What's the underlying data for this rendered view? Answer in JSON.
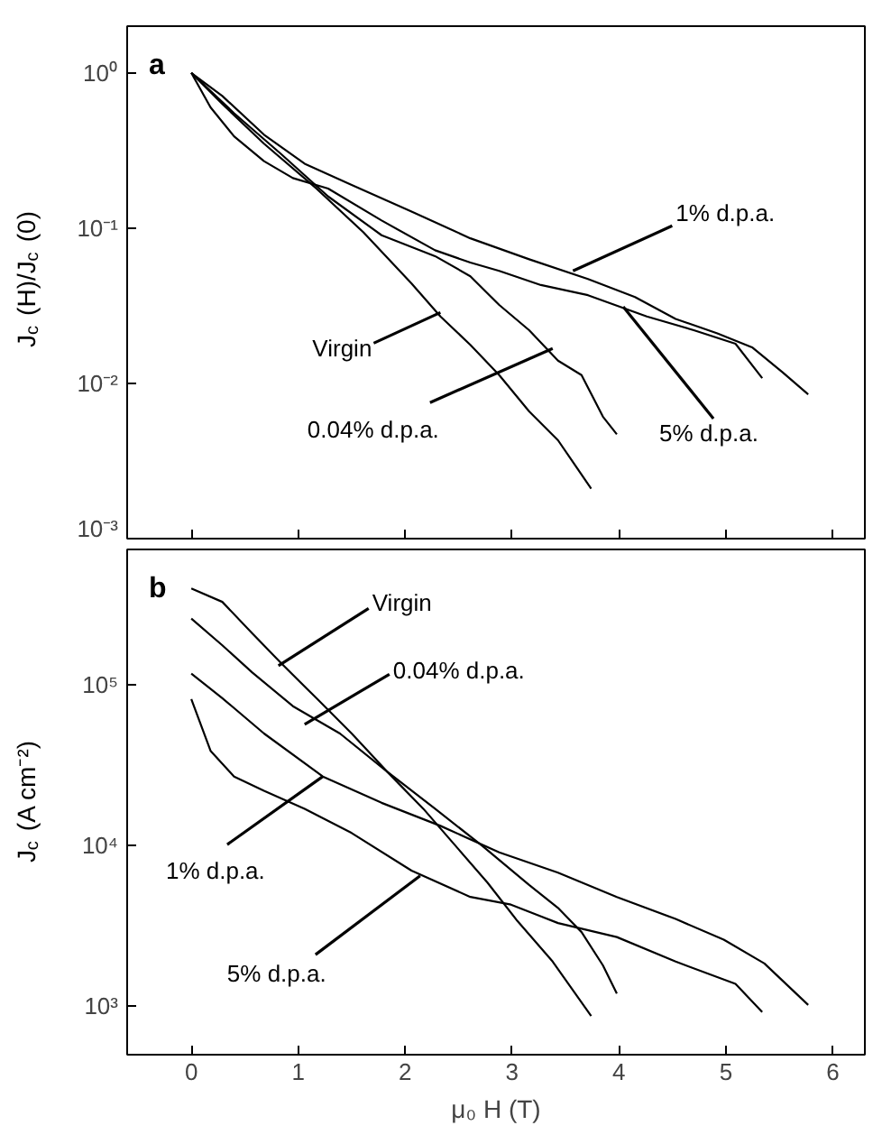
{
  "chart_data": [
    {
      "type": "line",
      "ylabel": "J$_{c}$ (H)/J$_{c}$ (0)",
      "log": true,
      "grid": false,
      "tick_labels": "y",
      "xlim": [
        -0.6,
        6.3
      ],
      "xticks": [
        0,
        1,
        2,
        3,
        4,
        5,
        6
      ],
      "ylim": [
        0.001,
        2
      ],
      "yticks": [
        {
          "value": 0.001,
          "label": "10⁻³"
        },
        {
          "value": 0.01,
          "label": "10⁻²"
        },
        {
          "value": 0.1,
          "label": "10⁻¹"
        },
        {
          "value": 1,
          "label": "10⁰"
        }
      ],
      "series": [
        {
          "color": "#000000",
          "x": [
            0,
            0.29,
            0.68,
            1.17,
            1.61,
            2.06,
            2.33,
            2.61,
            2.88,
            3.16,
            3.43,
            3.74
          ],
          "values": [
            1,
            0.63,
            0.35,
            0.18,
            0.094,
            0.044,
            0.027,
            0.0177,
            0.0113,
            0.0066,
            0.0043,
            0.0021
          ]
        },
        {
          "color": "#000000",
          "x": [
            0,
            0.4,
            0.84,
            1.28,
            1.78,
            2.28,
            2.61,
            2.88,
            3.16,
            3.43,
            3.65,
            3.85,
            3.98
          ],
          "values": [
            1,
            0.55,
            0.3,
            0.16,
            0.09,
            0.066,
            0.049,
            0.032,
            0.022,
            0.014,
            0.0113,
            0.0061,
            0.0047
          ]
        },
        {
          "color": "#000000",
          "x": [
            0,
            0.29,
            0.68,
            1.06,
            1.5,
            2.06,
            2.61,
            3.16,
            3.71,
            4.15,
            4.53,
            4.92,
            5.25,
            5.53,
            5.77
          ],
          "values": [
            1,
            0.71,
            0.4,
            0.26,
            0.19,
            0.128,
            0.086,
            0.063,
            0.047,
            0.036,
            0.026,
            0.021,
            0.017,
            0.0118,
            0.0085
          ]
        },
        {
          "color": "#000000",
          "x": [
            0,
            0.18,
            0.4,
            0.68,
            0.95,
            1.28,
            1.78,
            2.28,
            2.61,
            2.88,
            3.27,
            3.71,
            4.26,
            4.7,
            5.09,
            5.34
          ],
          "values": [
            1,
            0.6,
            0.39,
            0.27,
            0.21,
            0.18,
            0.112,
            0.072,
            0.06,
            0.053,
            0.043,
            0.037,
            0.027,
            0.022,
            0.018,
            0.0108
          ]
        }
      ],
      "annotations": [
        "a",
        {
          "text": "1% d.p.a.",
          "x": 3.57,
          "y": 0.053
        },
        {
          "text": "Virgin",
          "x": 2.33,
          "y": 0.0286
        },
        {
          "text": "0.04% d.p.a.",
          "x": 3.38,
          "y": 0.0168
        },
        {
          "text": "5% d.p.a.",
          "x": 4.04,
          "y": 0.0312
        }
      ]
    },
    {
      "type": "line",
      "xlabel": "μ₀ H (T)",
      "ylabel": "J$_{c}$ (A cm⁻²)",
      "log": true,
      "grid": false,
      "xlim": [
        -0.6,
        6.3
      ],
      "xticks": [
        0,
        1,
        2,
        3,
        4,
        5,
        6
      ],
      "ylim": [
        500,
        700000
      ],
      "yticks": [
        {
          "value": 1000,
          "label": "10³"
        },
        {
          "value": 10000,
          "label": "10⁴"
        },
        {
          "value": 100000,
          "label": "10⁵"
        }
      ],
      "series": [
        {
          "color": "#000000",
          "x": [
            0,
            0.29,
            0.57,
            0.84,
            1.17,
            1.5,
            1.83,
            2.17,
            2.5,
            2.77,
            3.05,
            3.38,
            3.74
          ],
          "values": [
            400000,
            330000,
            210000,
            137000,
            83000,
            50000,
            29000,
            17000,
            9500,
            5900,
            3400,
            1900,
            870
          ]
        },
        {
          "color": "#000000",
          "x": [
            0,
            0.29,
            0.57,
            0.95,
            1.39,
            1.83,
            2.28,
            2.72,
            3.16,
            3.43,
            3.65,
            3.85,
            3.98
          ],
          "values": [
            260000,
            177000,
            120000,
            74000,
            50000,
            29000,
            17000,
            10000,
            5700,
            4100,
            2900,
            1800,
            1200
          ]
        },
        {
          "color": "#000000",
          "x": [
            0,
            0.29,
            0.68,
            1.23,
            1.78,
            2.33,
            2.88,
            3.43,
            3.98,
            4.53,
            4.98,
            5.36,
            5.77
          ],
          "values": [
            118000,
            83000,
            50000,
            27000,
            18500,
            13300,
            9100,
            6800,
            4800,
            3500,
            2600,
            1850,
            1020
          ]
        },
        {
          "color": "#000000",
          "x": [
            0,
            0.18,
            0.4,
            0.68,
            1.06,
            1.5,
            2.06,
            2.61,
            2.99,
            3.43,
            3.98,
            4.53,
            5.09,
            5.34
          ],
          "values": [
            82000,
            39000,
            27000,
            22000,
            17000,
            12000,
            7000,
            4800,
            4300,
            3300,
            2700,
            1900,
            1380,
            920
          ]
        }
      ],
      "annotations": [
        "b",
        {
          "text": "Virgin",
          "x": 0.815,
          "y": 132000
        },
        {
          "text": "0.04% d.p.a.",
          "x": 1.06,
          "y": 57000
        },
        {
          "text": "1% d.p.a.",
          "x": 1.23,
          "y": 27000
        },
        {
          "text": "5% d.p.a.",
          "x": 2.14,
          "y": 6500
        }
      ]
    }
  ]
}
